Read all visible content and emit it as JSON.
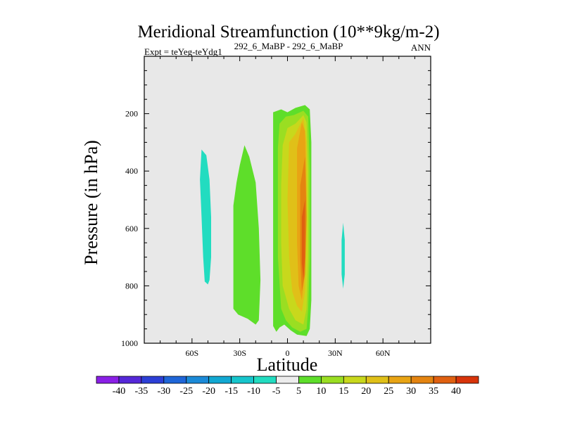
{
  "chart_data": {
    "type": "contour",
    "title": "Meridional Streamfunction (10**9kg/m-2)",
    "subtitle_left": "Expt = teYeg-teYdg1",
    "subtitle_center": "292_6_MaBP - 292_6_MaBP",
    "subtitle_right": "ANN",
    "xlabel": "Latitude",
    "ylabel": "Pressure (in hPa)",
    "xlim": [
      -90,
      90
    ],
    "ylim": [
      1000,
      0
    ],
    "x_ticks": [
      {
        "value": -60,
        "label": "60S"
      },
      {
        "value": -30,
        "label": "30S"
      },
      {
        "value": 0,
        "label": "0"
      },
      {
        "value": 30,
        "label": "30N"
      },
      {
        "value": 60,
        "label": "60N"
      }
    ],
    "y_ticks": [
      {
        "value": 200,
        "label": "200"
      },
      {
        "value": 400,
        "label": "400"
      },
      {
        "value": 600,
        "label": "600"
      },
      {
        "value": 800,
        "label": "800"
      },
      {
        "value": 1000,
        "label": "1000"
      }
    ],
    "colorbar": {
      "labels": [
        "-40",
        "-35",
        "-30",
        "-25",
        "-20",
        "-15",
        "-10",
        "-5",
        "5",
        "10",
        "15",
        "20",
        "25",
        "30",
        "35",
        "40"
      ],
      "colors": [
        "#8a1fe6",
        "#5528d8",
        "#2c3fd6",
        "#1f66d8",
        "#1b8ad8",
        "#12a8d2",
        "#16c5cc",
        "#22dcc0",
        "#ececec",
        "#5ede2a",
        "#9ade22",
        "#c8d81c",
        "#e0c018",
        "#e8a414",
        "#e48410",
        "#e06010",
        "#d8340a"
      ]
    },
    "missing_color": "#e8e8e8",
    "regions": [
      {
        "level": "-10 to -5",
        "color": "#22dcc0",
        "points": [
          [
            -54,
            325
          ],
          [
            -51,
            345
          ],
          [
            -49,
            430
          ],
          [
            -48,
            560
          ],
          [
            -48,
            700
          ],
          [
            -49,
            780
          ],
          [
            -50,
            795
          ],
          [
            -52,
            785
          ],
          [
            -53,
            700
          ],
          [
            -54,
            560
          ],
          [
            -55,
            430
          ]
        ]
      },
      {
        "level": "5 to 10",
        "color": "#5ede2a",
        "points": [
          [
            -27,
            310
          ],
          [
            -24,
            350
          ],
          [
            -20,
            440
          ],
          [
            -18,
            600
          ],
          [
            -17,
            780
          ],
          [
            -18,
            920
          ],
          [
            -20,
            935
          ],
          [
            -25,
            915
          ],
          [
            -31,
            900
          ],
          [
            -34,
            880
          ],
          [
            -34,
            700
          ],
          [
            -34,
            520
          ],
          [
            -32,
            440
          ],
          [
            -30,
            380
          ]
        ]
      },
      {
        "level": "5 to 10",
        "color": "#5ede2a",
        "points": [
          [
            -9,
            195
          ],
          [
            -4,
            185
          ],
          [
            0,
            195
          ],
          [
            5,
            180
          ],
          [
            11,
            170
          ],
          [
            14,
            185
          ],
          [
            15,
            300
          ],
          [
            15,
            500
          ],
          [
            15,
            700
          ],
          [
            15,
            850
          ],
          [
            14,
            950
          ],
          [
            12,
            975
          ],
          [
            6,
            970
          ],
          [
            2,
            955
          ],
          [
            -2,
            935
          ],
          [
            -5,
            945
          ],
          [
            -7,
            960
          ],
          [
            -9,
            940
          ],
          [
            -9,
            700
          ],
          [
            -9,
            500
          ],
          [
            -9,
            300
          ]
        ]
      },
      {
        "level": "10 to 15",
        "color": "#9ade22",
        "points": [
          [
            -5,
            235
          ],
          [
            -1,
            210
          ],
          [
            4,
            205
          ],
          [
            10,
            190
          ],
          [
            13,
            210
          ],
          [
            14,
            400
          ],
          [
            14,
            700
          ],
          [
            13,
            880
          ],
          [
            12,
            950
          ],
          [
            8,
            960
          ],
          [
            3,
            945
          ],
          [
            -1,
            920
          ],
          [
            -4,
            880
          ],
          [
            -6,
            700
          ],
          [
            -6,
            500
          ],
          [
            -6,
            320
          ]
        ]
      },
      {
        "level": "15 to 20",
        "color": "#c8d81c",
        "points": [
          [
            -3,
            310
          ],
          [
            0,
            250
          ],
          [
            5,
            235
          ],
          [
            10,
            205
          ],
          [
            12,
            230
          ],
          [
            13,
            400
          ],
          [
            13,
            700
          ],
          [
            12,
            880
          ],
          [
            10,
            935
          ],
          [
            5,
            920
          ],
          [
            1,
            880
          ],
          [
            -3,
            800
          ],
          [
            -4,
            650
          ],
          [
            -4,
            450
          ]
        ]
      },
      {
        "level": "20 to 25",
        "color": "#e0c018",
        "points": [
          [
            1,
            300
          ],
          [
            5,
            270
          ],
          [
            10,
            215
          ],
          [
            12,
            300
          ],
          [
            12,
            600
          ],
          [
            11,
            820
          ],
          [
            9,
            890
          ],
          [
            6,
            870
          ],
          [
            3,
            820
          ],
          [
            1,
            700
          ],
          [
            0,
            500
          ]
        ]
      },
      {
        "level": "25 to 30",
        "color": "#e8a414",
        "points": [
          [
            6,
            320
          ],
          [
            9,
            230
          ],
          [
            11,
            260
          ],
          [
            12,
            500
          ],
          [
            11,
            750
          ],
          [
            9,
            850
          ],
          [
            7,
            800
          ],
          [
            6,
            650
          ],
          [
            6,
            500
          ]
        ]
      },
      {
        "level": "30 to 35",
        "color": "#e48410",
        "points": [
          [
            8,
            450
          ],
          [
            11,
            350
          ],
          [
            12,
            560
          ],
          [
            11,
            760
          ],
          [
            9,
            820
          ],
          [
            8,
            700
          ]
        ]
      },
      {
        "level": "35 to 40",
        "color": "#e06010",
        "points": [
          [
            9,
            560
          ],
          [
            11,
            500
          ],
          [
            11,
            700
          ],
          [
            10,
            780
          ],
          [
            9,
            720
          ]
        ]
      },
      {
        "level": "-10 to -5",
        "color": "#22dcc0",
        "points": [
          [
            35,
            580
          ],
          [
            36,
            640
          ],
          [
            36,
            760
          ],
          [
            35,
            810
          ],
          [
            34,
            760
          ],
          [
            34,
            640
          ]
        ]
      }
    ]
  }
}
